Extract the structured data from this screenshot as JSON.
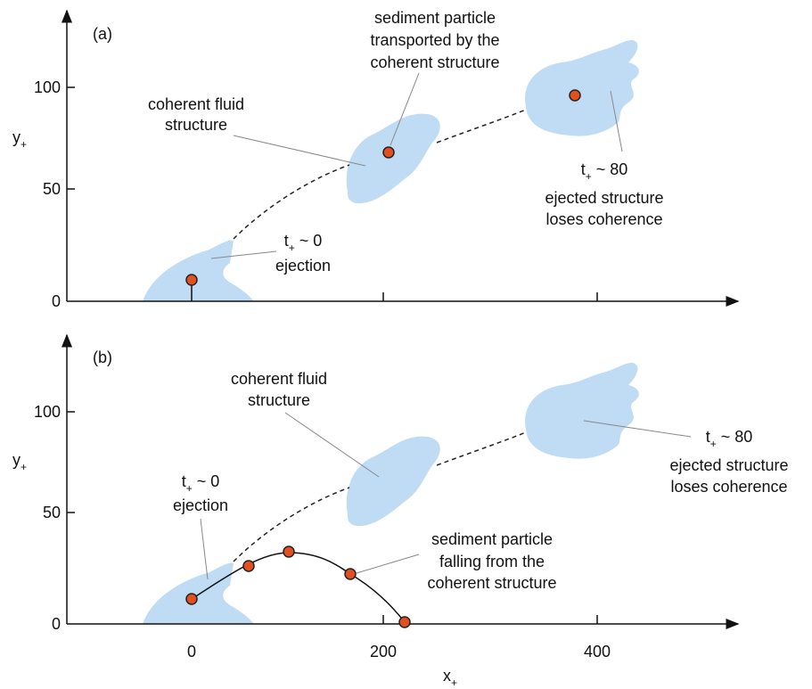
{
  "axes": {
    "y_label": "y",
    "y_label_sub": "+",
    "x_label": "x",
    "x_label_sub": "+",
    "y_ticks": [
      "0",
      "50",
      "100"
    ],
    "x_ticks": [
      "0",
      "200",
      "400"
    ]
  },
  "panel_a": {
    "label": "(a)",
    "fluid": [
      "coherent fluid",
      "structure"
    ],
    "particle": [
      "sediment particle",
      "transported by the",
      "coherent structure"
    ],
    "late": {
      "t": "t",
      "sub": "+",
      "rest": " ~ 80",
      "lines": [
        "ejected structure",
        "loses coherence"
      ]
    },
    "early": {
      "t": "t",
      "sub": "+",
      "rest": " ~ 0",
      "lines": [
        "ejection"
      ]
    }
  },
  "panel_b": {
    "label": "(b)",
    "fluid": [
      "coherent fluid",
      "structure"
    ],
    "particle": [
      "sediment particle",
      "falling from the",
      "coherent structure"
    ],
    "late": {
      "t": "t",
      "sub": "+",
      "rest": " ~ 80",
      "lines": [
        "ejected structure",
        "loses coherence"
      ]
    },
    "early": {
      "t": "t",
      "sub": "+",
      "rest": " ~ 0",
      "lines": [
        "ejection"
      ]
    }
  }
}
